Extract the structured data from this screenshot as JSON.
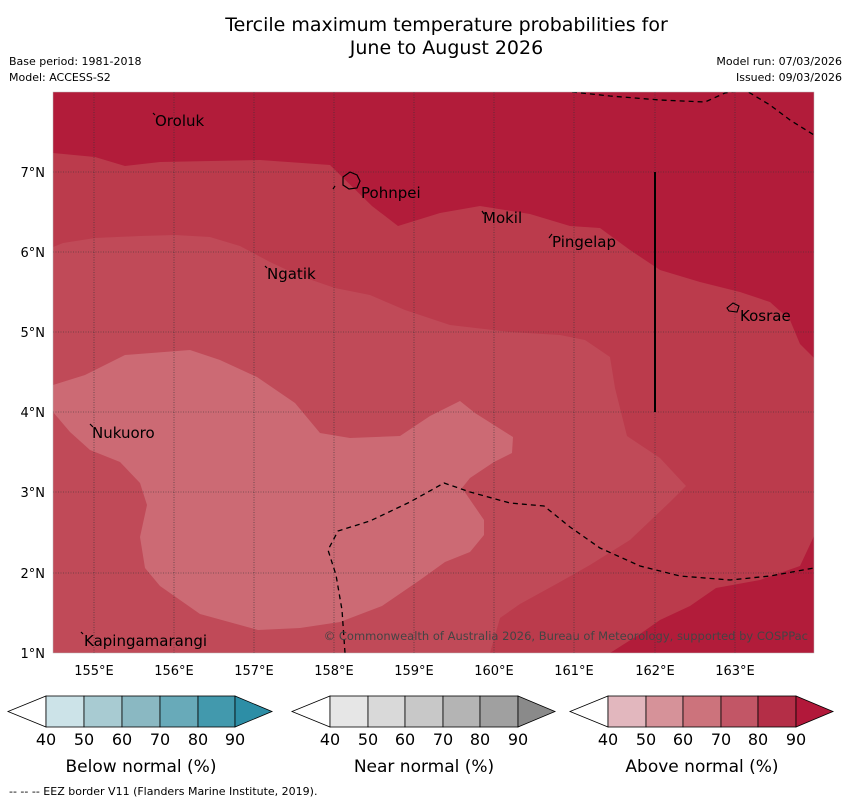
{
  "title": {
    "line1": "Tercile maximum temperature probabilities for",
    "line2": "June to August 2026"
  },
  "meta": {
    "base_period": "Base period: 1981-2018",
    "model": "Model: ACCESS-S2",
    "model_run": "Model run: 07/03/2026",
    "issued": "Issued: 09/03/2026"
  },
  "map": {
    "x_ticks": [
      "155°E",
      "156°E",
      "157°E",
      "158°E",
      "159°E",
      "160°E",
      "161°E",
      "162°E",
      "163°E"
    ],
    "y_ticks": [
      "7°N",
      "6°N",
      "5°N",
      "4°N",
      "3°N",
      "2°N",
      "1°N"
    ],
    "places": [
      "Oroluk",
      "Pohnpei",
      "Mokil",
      "Pingelap",
      "Ngatik",
      "Kosrae",
      "Nukuoro",
      "Kapingamarangi"
    ],
    "copyright": "© Commonwealth of Australia 2026, Bureau of Meteorology, supported by COSPPac",
    "colors": {
      "c50": "#cc6a74",
      "c60": "#c04a58",
      "c70": "#bb3b4c",
      "c80": "#b21c3a"
    }
  },
  "colorbars": [
    {
      "label": "Below normal (%)",
      "ticks": [
        "40",
        "50",
        "60",
        "70",
        "80",
        "90"
      ],
      "colors": [
        "#ffffff",
        "#cce3e8",
        "#a8cbd2",
        "#8ab8c2",
        "#68aab9",
        "#4299ad",
        "#2d8ea6"
      ]
    },
    {
      "label": "Near normal (%)",
      "ticks": [
        "40",
        "50",
        "60",
        "70",
        "80",
        "90"
      ],
      "colors": [
        "#ffffff",
        "#e6e6e6",
        "#d9d9d9",
        "#c8c8c8",
        "#b4b4b4",
        "#a0a0a0",
        "#8a8a8a"
      ]
    },
    {
      "label": "Above normal (%)",
      "ticks": [
        "40",
        "50",
        "60",
        "70",
        "80",
        "90"
      ],
      "colors": [
        "#ffffff",
        "#e2b7be",
        "#d69299",
        "#cc737c",
        "#c25666",
        "#b42e47",
        "#b2183a"
      ]
    }
  ],
  "footnote": "--  --  -- EEZ border V11 (Flanders Marine Institute, 2019)."
}
